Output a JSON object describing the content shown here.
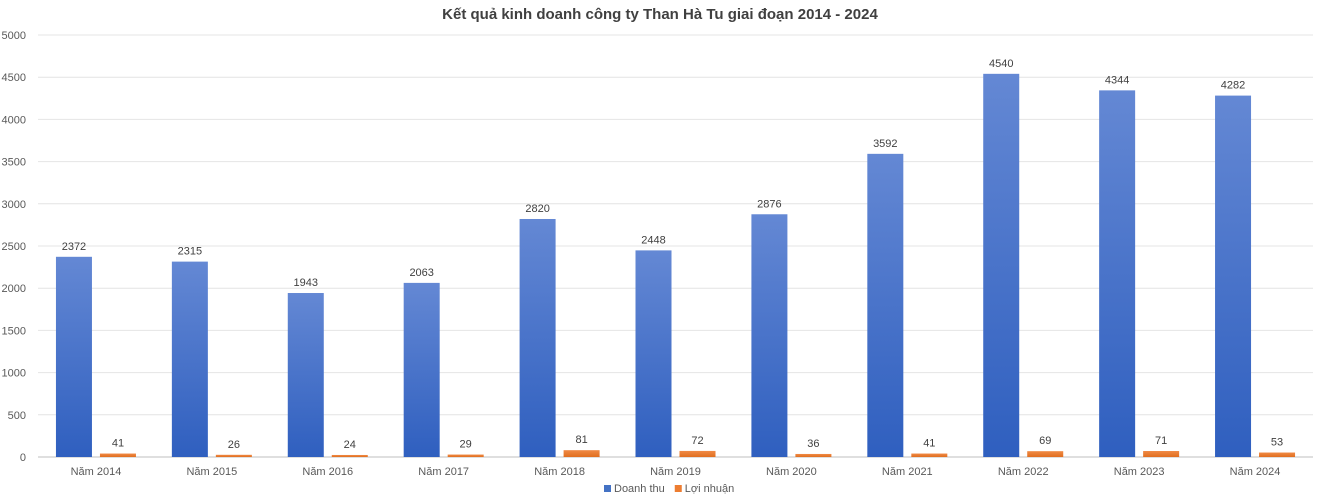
{
  "chart_data": {
    "type": "bar",
    "title": "Kết quả kinh doanh công ty Than Hà Tu giai đoạn 2014 - 2024",
    "xlabel": "",
    "ylabel": "",
    "ylim": [
      0,
      5000
    ],
    "yticks": [
      0,
      500,
      1000,
      1500,
      2000,
      2500,
      3000,
      3500,
      4000,
      4500,
      5000
    ],
    "grid": true,
    "legend_position": "bottom",
    "categories": [
      "Năm 2014",
      "Năm 2015",
      "Năm 2016",
      "Năm 2017",
      "Năm 2018",
      "Năm 2019",
      "Năm 2020",
      "Năm 2021",
      "Năm 2022",
      "Năm 2023",
      "Năm 2024"
    ],
    "series": [
      {
        "name": "Doanh thu",
        "color": "#4472C4",
        "values": [
          2372,
          2315,
          1943,
          2063,
          2820,
          2448,
          2876,
          3592,
          4540,
          4344,
          4282
        ]
      },
      {
        "name": "Lợi nhuận",
        "color": "#ED7D31",
        "values": [
          41,
          26,
          24,
          29,
          81,
          72,
          36,
          41,
          69,
          71,
          53
        ]
      }
    ]
  }
}
